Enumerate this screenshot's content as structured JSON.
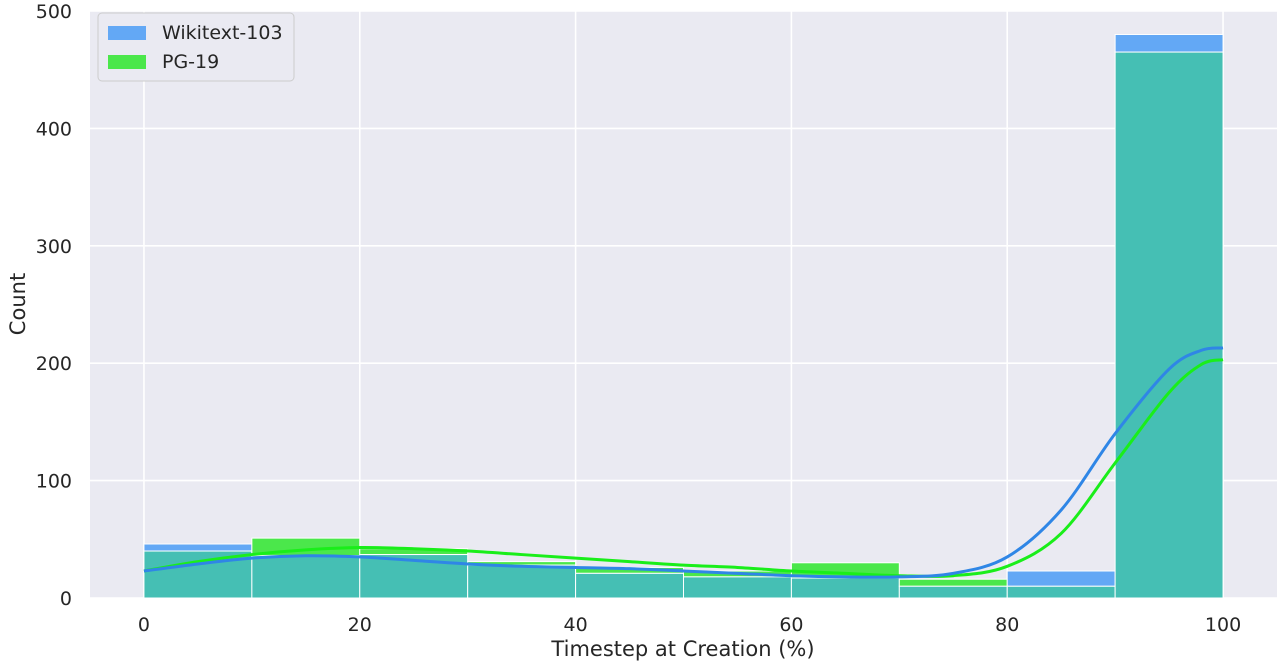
{
  "chart_data": {
    "type": "histogram",
    "xlabel": "Timestep at Creation (%)",
    "ylabel": "Count",
    "xlim": [
      -5,
      105
    ],
    "ylim": [
      0,
      500
    ],
    "x_ticks": [
      "0",
      "20",
      "40",
      "60",
      "80",
      "100"
    ],
    "y_ticks": [
      "0",
      "100",
      "200",
      "300",
      "400",
      "500"
    ],
    "grid": true,
    "legend_position": "top-left",
    "bin_edges": [
      0,
      10,
      20,
      30,
      40,
      50,
      60,
      70,
      80,
      90,
      100
    ],
    "series": [
      {
        "name": "Wikitext-103",
        "color": "#63a8f5",
        "kde_color": "#2f86e6",
        "counts": [
          46,
          36,
          37,
          28,
          21,
          18,
          17,
          10,
          23,
          480
        ],
        "kde": [
          [
            0,
            23
          ],
          [
            5,
            29
          ],
          [
            10,
            34
          ],
          [
            15,
            36
          ],
          [
            20,
            35
          ],
          [
            25,
            32
          ],
          [
            30,
            29
          ],
          [
            35,
            27
          ],
          [
            40,
            26
          ],
          [
            45,
            25
          ],
          [
            50,
            23
          ],
          [
            55,
            21
          ],
          [
            60,
            19
          ],
          [
            65,
            18
          ],
          [
            70,
            18
          ],
          [
            75,
            21
          ],
          [
            80,
            35
          ],
          [
            85,
            75
          ],
          [
            90,
            140
          ],
          [
            95,
            195
          ],
          [
            98,
            211
          ],
          [
            100,
            213
          ]
        ]
      },
      {
        "name": "PG-19",
        "color": "#4be74b",
        "kde_color": "#1aee1a",
        "counts": [
          40,
          51,
          42,
          31,
          26,
          23,
          30,
          16,
          10,
          465
        ],
        "kde": [
          [
            0,
            23
          ],
          [
            5,
            31
          ],
          [
            10,
            37
          ],
          [
            15,
            41
          ],
          [
            20,
            43
          ],
          [
            25,
            42
          ],
          [
            30,
            40
          ],
          [
            35,
            37
          ],
          [
            40,
            34
          ],
          [
            45,
            31
          ],
          [
            50,
            28
          ],
          [
            55,
            26
          ],
          [
            60,
            23
          ],
          [
            65,
            21
          ],
          [
            70,
            19
          ],
          [
            75,
            19
          ],
          [
            80,
            27
          ],
          [
            85,
            55
          ],
          [
            90,
            115
          ],
          [
            95,
            175
          ],
          [
            98,
            199
          ],
          [
            100,
            203
          ]
        ]
      }
    ],
    "overlap_color": "#45bfb4"
  }
}
